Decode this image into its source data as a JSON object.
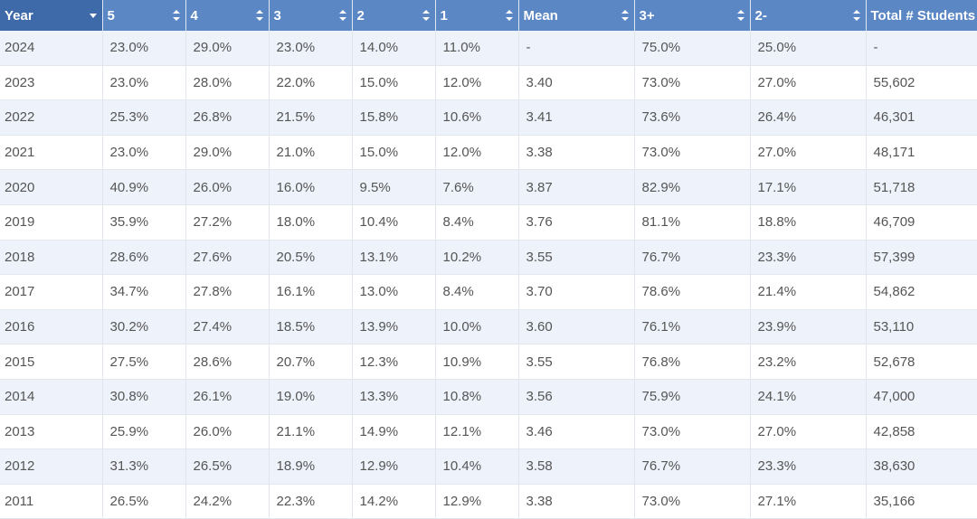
{
  "table": {
    "headers": [
      "Year",
      "5",
      "4",
      "3",
      "2",
      "1",
      "Mean",
      "3+",
      "2-",
      "Total # Students"
    ],
    "rows": [
      [
        "2024",
        "23.0%",
        "29.0%",
        "23.0%",
        "14.0%",
        "11.0%",
        "-",
        "75.0%",
        "25.0%",
        "-"
      ],
      [
        "2023",
        "23.0%",
        "28.0%",
        "22.0%",
        "15.0%",
        "12.0%",
        "3.40",
        "73.0%",
        "27.0%",
        "55,602"
      ],
      [
        "2022",
        "25.3%",
        "26.8%",
        "21.5%",
        "15.8%",
        "10.6%",
        "3.41",
        "73.6%",
        "26.4%",
        "46,301"
      ],
      [
        "2021",
        "23.0%",
        "29.0%",
        "21.0%",
        "15.0%",
        "12.0%",
        "3.38",
        "73.0%",
        "27.0%",
        "48,171"
      ],
      [
        "2020",
        "40.9%",
        "26.0%",
        "16.0%",
        "9.5%",
        "7.6%",
        "3.87",
        "82.9%",
        "17.1%",
        "51,718"
      ],
      [
        "2019",
        "35.9%",
        "27.2%",
        "18.0%",
        "10.4%",
        "8.4%",
        "3.76",
        "81.1%",
        "18.8%",
        "46,709"
      ],
      [
        "2018",
        "28.6%",
        "27.6%",
        "20.5%",
        "13.1%",
        "10.2%",
        "3.55",
        "76.7%",
        "23.3%",
        "57,399"
      ],
      [
        "2017",
        "34.7%",
        "27.8%",
        "16.1%",
        "13.0%",
        "8.4%",
        "3.70",
        "78.6%",
        "21.4%",
        "54,862"
      ],
      [
        "2016",
        "30.2%",
        "27.4%",
        "18.5%",
        "13.9%",
        "10.0%",
        "3.60",
        "76.1%",
        "23.9%",
        "53,110"
      ],
      [
        "2015",
        "27.5%",
        "28.6%",
        "20.7%",
        "12.3%",
        "10.9%",
        "3.55",
        "76.8%",
        "23.2%",
        "52,678"
      ],
      [
        "2014",
        "30.8%",
        "26.1%",
        "19.0%",
        "13.3%",
        "10.8%",
        "3.56",
        "75.9%",
        "24.1%",
        "47,000"
      ],
      [
        "2013",
        "25.9%",
        "26.0%",
        "21.1%",
        "14.9%",
        "12.1%",
        "3.46",
        "73.0%",
        "27.0%",
        "42,858"
      ],
      [
        "2012",
        "31.3%",
        "26.5%",
        "18.9%",
        "12.9%",
        "10.4%",
        "3.58",
        "76.7%",
        "23.3%",
        "38,630"
      ],
      [
        "2011",
        "26.5%",
        "24.2%",
        "22.3%",
        "14.2%",
        "12.9%",
        "3.38",
        "73.0%",
        "27.1%",
        "35,166"
      ]
    ]
  },
  "sort": {
    "active_column": "Year",
    "direction": "descending",
    "active_icon": "sort-desc-icon",
    "inactive_icon": "sort-icon"
  },
  "colors": {
    "header_bg": "#5b87c5",
    "header_active_bg": "#3f6aaa",
    "header_text": "#ffffff",
    "row_stripe": "#eef2fa",
    "row_plain": "#ffffff",
    "cell_text": "#555555"
  }
}
